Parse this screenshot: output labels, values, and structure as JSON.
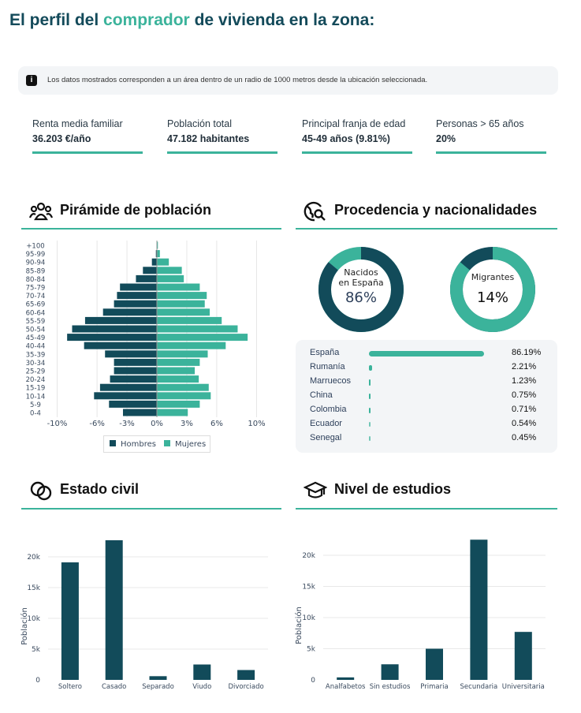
{
  "header": {
    "title_pre": "El perfil del",
    "title_accent": "comprador",
    "title_post": "de vivienda en la zona:"
  },
  "info": {
    "icon": "info-icon",
    "text": "Los datos mostrados corresponden a un área dentro de un radio de 1000 metros desde la ubicación seleccionada."
  },
  "stats": [
    {
      "label": "Renta media familiar",
      "value": "36.203 €/año"
    },
    {
      "label": "Población total",
      "value": "47.182 habitantes"
    },
    {
      "label": "Principal franja de edad",
      "value": "45-49 años (9.81%)"
    },
    {
      "label": "Personas > 65 años",
      "value": "20%"
    }
  ],
  "sections": {
    "pyramid": "Pirámide de población",
    "origin": "Procedencia y nacionalidades",
    "civil": "Estado civil",
    "education": "Nivel de estudios"
  },
  "colors": {
    "dark": "#124b5a",
    "teal": "#3bb39b"
  },
  "donuts": [
    {
      "label_line1": "Nacidos",
      "label_line2": "en España",
      "value_text": "86%",
      "value": 86
    },
    {
      "label_line1": "Migrantes",
      "label_line2": "",
      "value_text": "14%",
      "value": 14
    }
  ],
  "nationalities": [
    {
      "name": "España",
      "pct_text": "86.19%",
      "pct": 86.19
    },
    {
      "name": "Rumanía",
      "pct_text": "2.21%",
      "pct": 2.21
    },
    {
      "name": "Marruecos",
      "pct_text": "1.23%",
      "pct": 1.23
    },
    {
      "name": "China",
      "pct_text": "0.75%",
      "pct": 0.75
    },
    {
      "name": "Colombia",
      "pct_text": "0.71%",
      "pct": 0.71
    },
    {
      "name": "Ecuador",
      "pct_text": "0.54%",
      "pct": 0.54
    },
    {
      "name": "Senegal",
      "pct_text": "0.45%",
      "pct": 0.45
    }
  ],
  "chart_data": [
    {
      "type": "bar",
      "title": "Pirámide de población",
      "orientation": "horizontal",
      "categories": [
        "+100",
        "95-99",
        "90-94",
        "85-89",
        "80-84",
        "75-79",
        "70-74",
        "65-69",
        "60-64",
        "55-59",
        "50-54",
        "45-49",
        "40-44",
        "35-39",
        "30-34",
        "25-29",
        "20-24",
        "15-19",
        "10-14",
        "5-9",
        "0-4"
      ],
      "series": [
        {
          "name": "Hombres",
          "values": [
            0.0,
            0.1,
            0.5,
            1.4,
            2.1,
            3.7,
            4.0,
            4.3,
            5.4,
            7.2,
            8.5,
            9.0,
            7.3,
            5.2,
            4.3,
            4.3,
            4.7,
            5.7,
            6.3,
            4.8,
            3.4
          ]
        },
        {
          "name": "Mujeres",
          "values": [
            0.1,
            0.3,
            1.2,
            2.5,
            2.7,
            4.3,
            5.0,
            4.8,
            5.3,
            6.5,
            8.1,
            9.1,
            6.9,
            5.1,
            4.3,
            3.8,
            4.2,
            5.2,
            5.4,
            4.3,
            3.1
          ]
        }
      ],
      "xticks": [
        -10,
        -6,
        -3,
        0,
        3,
        6,
        10
      ],
      "xtick_labels": [
        "-10%",
        "-6%",
        "-3%",
        "0%",
        "3%",
        "6%",
        "10%"
      ],
      "xlim": [
        -10,
        10
      ],
      "legend": [
        "Hombres",
        "Mujeres"
      ],
      "legend_position": "bottom"
    },
    {
      "type": "bar",
      "title": "Estado civil",
      "categories": [
        "Soltero",
        "Casado",
        "Separado",
        "Viudo",
        "Divorciado"
      ],
      "values": [
        19100,
        22700,
        600,
        2500,
        1600
      ],
      "ylabel": "Población",
      "yticks": [
        0,
        5000,
        10000,
        15000,
        20000
      ],
      "ytick_labels": [
        "0",
        "5k",
        "10k",
        "15k",
        "20k"
      ],
      "ylim": [
        0,
        23500
      ]
    },
    {
      "type": "bar",
      "title": "Nivel de estudios",
      "categories": [
        "Analfabetos",
        "Sin estudios",
        "Primaria",
        "Secundaria",
        "Universitaria"
      ],
      "values": [
        400,
        2500,
        5000,
        22500,
        7700
      ],
      "ylabel": "Población",
      "yticks": [
        0,
        5000,
        10000,
        15000,
        20000
      ],
      "ytick_labels": [
        "0",
        "5k",
        "10k",
        "15k",
        "20k"
      ],
      "ylim": [
        0,
        23500
      ]
    }
  ]
}
